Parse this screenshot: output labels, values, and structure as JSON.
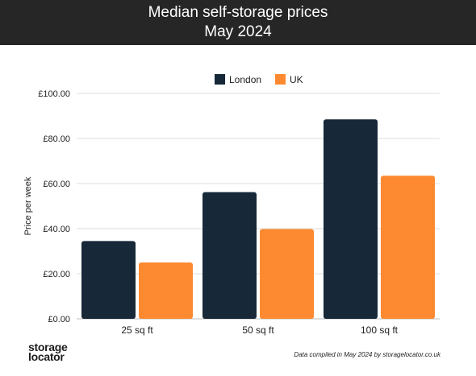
{
  "title_line1": "Median self-storage prices",
  "title_line2": "May 2024",
  "colors": {
    "london": "#172838",
    "uk": "#fd8a30",
    "grid": "#dcdcdc",
    "header_bg": "#262626"
  },
  "chart_data": {
    "type": "bar",
    "categories": [
      "25 sq ft",
      "50 sq ft",
      "100 sq ft"
    ],
    "series": [
      {
        "name": "London",
        "values": [
          34.5,
          56.2,
          88.5
        ]
      },
      {
        "name": "UK",
        "values": [
          25.0,
          39.8,
          63.5
        ]
      }
    ],
    "ylabel": "Price per week",
    "ylim": [
      0,
      100
    ],
    "yticks": [
      "£0.00",
      "£20.00",
      "£40.00",
      "£60.00",
      "£80.00",
      "£100.00"
    ],
    "grid": true,
    "legend_position": "top-center"
  },
  "footer": {
    "logo_line1": "storage",
    "logo_line2": "locator",
    "note": "Data compiled in May 2024 by storagelocator.co.uk"
  }
}
